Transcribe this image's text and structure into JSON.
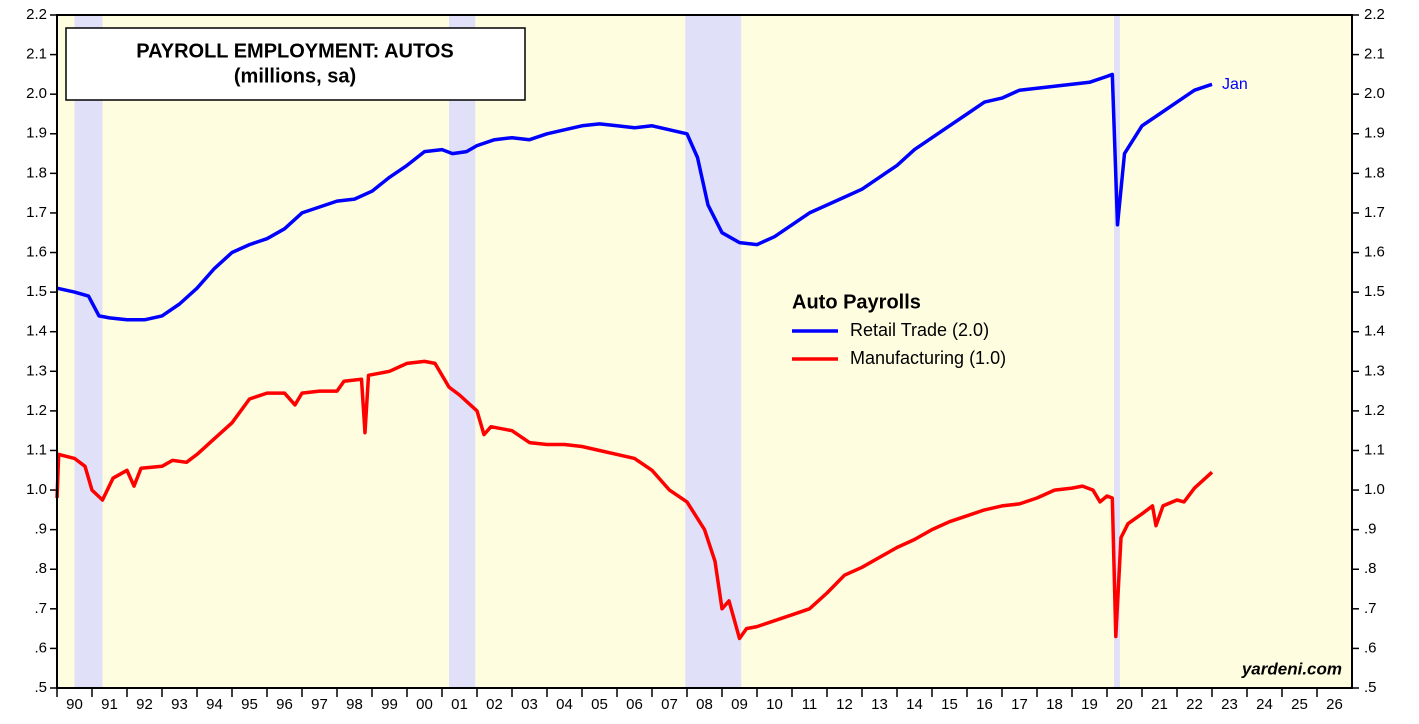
{
  "chart_data": {
    "type": "line",
    "title": "PAYROLL EMPLOYMENT: AUTOS",
    "subtitle": "(millions, sa)",
    "legend_title": "Auto Payrolls",
    "annotations": [
      "Jan",
      "yardeni.com"
    ],
    "xlim": [
      1990,
      2027
    ],
    "xticks": [
      {
        "value": 1990,
        "label": "90"
      },
      {
        "value": 1991,
        "label": "91"
      },
      {
        "value": 1992,
        "label": "92"
      },
      {
        "value": 1993,
        "label": "93"
      },
      {
        "value": 1994,
        "label": "94"
      },
      {
        "value": 1995,
        "label": "95"
      },
      {
        "value": 1996,
        "label": "96"
      },
      {
        "value": 1997,
        "label": "97"
      },
      {
        "value": 1998,
        "label": "98"
      },
      {
        "value": 1999,
        "label": "99"
      },
      {
        "value": 2000,
        "label": "00"
      },
      {
        "value": 2001,
        "label": "01"
      },
      {
        "value": 2002,
        "label": "02"
      },
      {
        "value": 2003,
        "label": "03"
      },
      {
        "value": 2004,
        "label": "04"
      },
      {
        "value": 2005,
        "label": "05"
      },
      {
        "value": 2006,
        "label": "06"
      },
      {
        "value": 2007,
        "label": "07"
      },
      {
        "value": 2008,
        "label": "08"
      },
      {
        "value": 2009,
        "label": "09"
      },
      {
        "value": 2010,
        "label": "10"
      },
      {
        "value": 2011,
        "label": "11"
      },
      {
        "value": 2012,
        "label": "12"
      },
      {
        "value": 2013,
        "label": "13"
      },
      {
        "value": 2014,
        "label": "14"
      },
      {
        "value": 2015,
        "label": "15"
      },
      {
        "value": 2016,
        "label": "16"
      },
      {
        "value": 2017,
        "label": "17"
      },
      {
        "value": 2018,
        "label": "18"
      },
      {
        "value": 2019,
        "label": "19"
      },
      {
        "value": 2020,
        "label": "20"
      },
      {
        "value": 2021,
        "label": "21"
      },
      {
        "value": 2022,
        "label": "22"
      },
      {
        "value": 2023,
        "label": "23"
      },
      {
        "value": 2024,
        "label": "24"
      },
      {
        "value": 2025,
        "label": "25"
      },
      {
        "value": 2026,
        "label": "26"
      }
    ],
    "ylim": [
      0.5,
      2.2
    ],
    "yticks": [
      {
        "value": 0.5,
        "label": ".5"
      },
      {
        "value": 0.6,
        "label": ".6"
      },
      {
        "value": 0.7,
        "label": ".7"
      },
      {
        "value": 0.8,
        "label": ".8"
      },
      {
        "value": 0.9,
        "label": ".9"
      },
      {
        "value": 1.0,
        "label": "1.0"
      },
      1.1,
      1.2,
      1.3,
      1.4,
      1.5,
      1.6,
      1.7,
      1.8,
      1.9,
      {
        "value": 2.0,
        "label": "2.0"
      },
      2.1,
      2.2
    ],
    "recessions": [
      [
        1990.5,
        1991.3
      ],
      [
        2001.2,
        2001.95
      ],
      [
        2007.95,
        2009.55
      ],
      [
        2020.2,
        2020.37
      ]
    ],
    "recession_color": "#e0e0f8",
    "background": "#fffde0",
    "series": [
      {
        "name": "Retail Trade (2.0)",
        "color": "#0000ff",
        "x": [
          1990.0,
          1990.5,
          1990.9,
          1991.2,
          1991.5,
          1992.0,
          1992.5,
          1993.0,
          1993.5,
          1994.0,
          1994.5,
          1995.0,
          1995.5,
          1996.0,
          1996.5,
          1997.0,
          1997.5,
          1998.0,
          1998.5,
          1999.0,
          1999.5,
          2000.0,
          2000.5,
          2001.0,
          2001.3,
          2001.7,
          2002.0,
          2002.5,
          2003.0,
          2003.5,
          2004.0,
          2004.5,
          2005.0,
          2005.5,
          2006.0,
          2006.5,
          2007.0,
          2007.5,
          2008.0,
          2008.3,
          2008.6,
          2009.0,
          2009.5,
          2010.0,
          2010.5,
          2011.0,
          2011.5,
          2012.0,
          2012.5,
          2013.0,
          2013.5,
          2014.0,
          2014.5,
          2015.0,
          2015.5,
          2016.0,
          2016.5,
          2017.0,
          2017.5,
          2018.0,
          2018.5,
          2019.0,
          2019.5,
          2020.0,
          2020.15,
          2020.3,
          2020.5,
          2021.0,
          2021.5,
          2022.0,
          2022.5,
          2023.0
        ],
        "values": [
          1.51,
          1.5,
          1.49,
          1.44,
          1.435,
          1.43,
          1.43,
          1.44,
          1.47,
          1.51,
          1.56,
          1.6,
          1.62,
          1.635,
          1.66,
          1.7,
          1.715,
          1.73,
          1.735,
          1.755,
          1.79,
          1.82,
          1.855,
          1.86,
          1.85,
          1.855,
          1.87,
          1.885,
          1.89,
          1.885,
          1.9,
          1.91,
          1.92,
          1.925,
          1.92,
          1.915,
          1.92,
          1.91,
          1.9,
          1.84,
          1.72,
          1.65,
          1.625,
          1.62,
          1.64,
          1.67,
          1.7,
          1.72,
          1.74,
          1.76,
          1.79,
          1.82,
          1.86,
          1.89,
          1.92,
          1.95,
          1.98,
          1.99,
          2.01,
          2.015,
          2.02,
          2.025,
          2.03,
          2.045,
          2.05,
          1.67,
          1.85,
          1.92,
          1.95,
          1.98,
          2.01,
          2.025
        ]
      },
      {
        "name": "Manufacturing (1.0)",
        "color": "#ff0000",
        "x": [
          1990.0,
          1990.05,
          1990.5,
          1990.8,
          1991.0,
          1991.3,
          1991.6,
          1992.0,
          1992.2,
          1992.4,
          1993.0,
          1993.3,
          1993.7,
          1994.0,
          1994.5,
          1995.0,
          1995.5,
          1996.0,
          1996.5,
          1996.8,
          1997.0,
          1997.5,
          1998.0,
          1998.2,
          1998.7,
          1998.8,
          1998.9,
          1999.5,
          2000.0,
          2000.5,
          2000.8,
          2001.2,
          2001.5,
          2002.0,
          2002.2,
          2002.4,
          2003.0,
          2003.5,
          2004.0,
          2004.5,
          2005.0,
          2005.5,
          2006.0,
          2006.5,
          2007.0,
          2007.5,
          2008.0,
          2008.5,
          2008.8,
          2009.0,
          2009.2,
          2009.5,
          2009.7,
          2010.0,
          2010.5,
          2011.0,
          2011.5,
          2012.0,
          2012.5,
          2013.0,
          2013.5,
          2014.0,
          2014.5,
          2015.0,
          2015.5,
          2016.0,
          2016.5,
          2017.0,
          2017.5,
          2018.0,
          2018.5,
          2019.0,
          2019.3,
          2019.6,
          2019.8,
          2020.0,
          2020.15,
          2020.25,
          2020.4,
          2020.6,
          2021.0,
          2021.3,
          2021.4,
          2021.6,
          2022.0,
          2022.2,
          2022.5,
          2023.0
        ],
        "values": [
          0.98,
          1.09,
          1.08,
          1.06,
          1.0,
          0.975,
          1.03,
          1.05,
          1.01,
          1.055,
          1.06,
          1.075,
          1.07,
          1.09,
          1.13,
          1.17,
          1.23,
          1.245,
          1.245,
          1.215,
          1.245,
          1.25,
          1.25,
          1.275,
          1.28,
          1.145,
          1.29,
          1.3,
          1.32,
          1.325,
          1.32,
          1.26,
          1.24,
          1.2,
          1.14,
          1.16,
          1.15,
          1.12,
          1.115,
          1.115,
          1.11,
          1.1,
          1.09,
          1.08,
          1.05,
          1.0,
          0.97,
          0.9,
          0.82,
          0.7,
          0.72,
          0.625,
          0.65,
          0.655,
          0.67,
          0.685,
          0.7,
          0.74,
          0.785,
          0.805,
          0.83,
          0.855,
          0.875,
          0.9,
          0.92,
          0.935,
          0.95,
          0.96,
          0.965,
          0.98,
          1.0,
          1.005,
          1.01,
          1.0,
          0.97,
          0.985,
          0.98,
          0.63,
          0.88,
          0.915,
          0.94,
          0.96,
          0.91,
          0.96,
          0.975,
          0.97,
          1.005,
          1.045
        ]
      }
    ]
  }
}
